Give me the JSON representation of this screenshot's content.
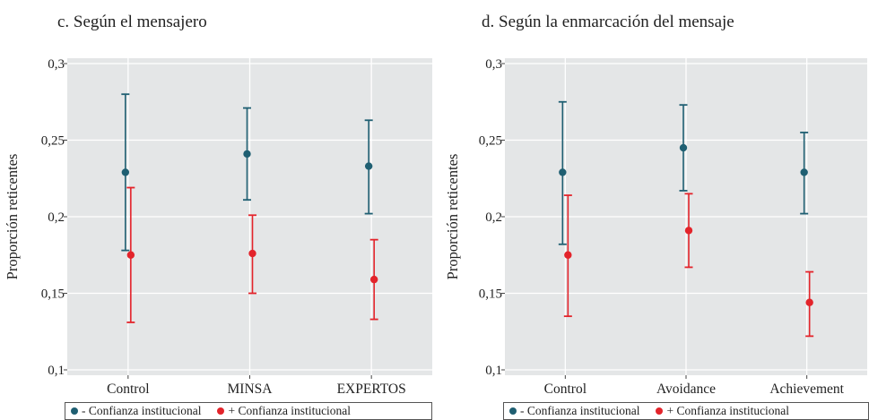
{
  "chart_data": [
    {
      "type": "scatter",
      "title": "c. Según el mensajero",
      "ylabel": "Proporción reticentes",
      "xlabel": "",
      "categories": [
        "Control",
        "MINSA",
        "EXPERTOS"
      ],
      "ylim": [
        0.1,
        0.3
      ],
      "yticks": [
        "0,1",
        "0,15",
        "0,2",
        "0,25",
        "0,3"
      ],
      "ytick_values": [
        0.1,
        0.15,
        0.2,
        0.25,
        0.3
      ],
      "grid": true,
      "legend_position": "bottom",
      "series": [
        {
          "name": "- Confianza institucional",
          "color": "#1f5f72",
          "values": [
            0.229,
            0.241,
            0.233
          ],
          "lower": [
            0.178,
            0.211,
            0.202
          ],
          "upper": [
            0.28,
            0.271,
            0.263
          ]
        },
        {
          "name": "+ Confianza institucional",
          "color": "#e3242b",
          "values": [
            0.175,
            0.176,
            0.159
          ],
          "lower": [
            0.131,
            0.15,
            0.133
          ],
          "upper": [
            0.219,
            0.201,
            0.185
          ]
        }
      ]
    },
    {
      "type": "scatter",
      "title": "d. Según la enmarcación del mensaje",
      "ylabel": "Proporción reticentes",
      "xlabel": "",
      "categories": [
        "Control",
        "Avoidance",
        "Achievement"
      ],
      "ylim": [
        0.1,
        0.3
      ],
      "yticks": [
        "0,1",
        "0,15",
        "0,2",
        "0,25",
        "0,3"
      ],
      "ytick_values": [
        0.1,
        0.15,
        0.2,
        0.25,
        0.3
      ],
      "grid": true,
      "legend_position": "bottom",
      "series": [
        {
          "name": "- Confianza institucional",
          "color": "#1f5f72",
          "values": [
            0.229,
            0.245,
            0.229
          ],
          "lower": [
            0.182,
            0.217,
            0.202
          ],
          "upper": [
            0.275,
            0.273,
            0.255
          ]
        },
        {
          "name": "+ Confianza institucional",
          "color": "#e3242b",
          "values": [
            0.175,
            0.191,
            0.144
          ],
          "lower": [
            0.135,
            0.167,
            0.122
          ],
          "upper": [
            0.214,
            0.215,
            0.164
          ]
        }
      ]
    }
  ],
  "style": {
    "panel_bg": "#e4e6e7",
    "grid_color": "#ffffff",
    "axis_color": "#444444"
  }
}
